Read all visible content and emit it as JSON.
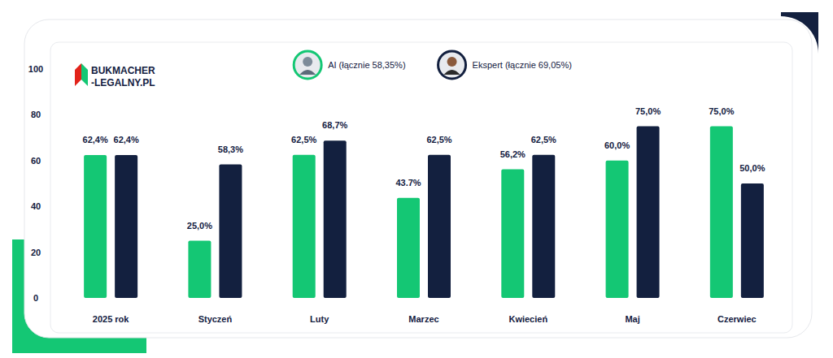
{
  "chart_data": {
    "type": "bar",
    "annotations": [
      "BUKMACHER",
      "-LEGALNY.PL"
    ],
    "categories": [
      "2025 rok",
      "Styczeń",
      "Luty",
      "Marzec",
      "Kwiecień",
      "Maj",
      "Czerwiec"
    ],
    "series": [
      {
        "name": "AI (łącznie 58,35%)",
        "color": "#14c774",
        "values": [
          62.4,
          25.0,
          62.5,
          43.7,
          56.2,
          60.0,
          75.0
        ],
        "value_labels": [
          "62,4%",
          "25,0%",
          "62,5%",
          "43.7%",
          "56,2%",
          "60,0%",
          "75,0%"
        ]
      },
      {
        "name": "Ekspert (łącznie 69,05%)",
        "color": "#13203f",
        "values": [
          62.4,
          58.3,
          68.7,
          62.5,
          62.5,
          75.0,
          50.0
        ],
        "value_labels": [
          "62,4%",
          "58,3%",
          "68,7%",
          "62,5%",
          "62,5%",
          "75,0%",
          "50,0%"
        ]
      }
    ],
    "ylim": [
      0,
      100
    ],
    "yticks": [
      0,
      20,
      40,
      60,
      80,
      100
    ],
    "grid": false,
    "legend": "top",
    "data_labels": true
  }
}
